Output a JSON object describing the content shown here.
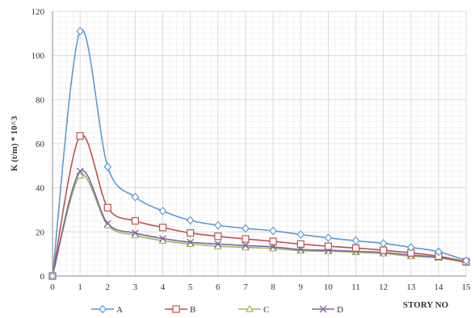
{
  "chart_data": {
    "type": "line",
    "title": "",
    "xlabel": "STORY NO",
    "ylabel": "K (t/m) * 10^3",
    "x": [
      0,
      1,
      2,
      3,
      4,
      5,
      6,
      7,
      8,
      9,
      10,
      11,
      12,
      13,
      14,
      15
    ],
    "xlim": [
      0,
      15
    ],
    "ylim": [
      0,
      120
    ],
    "yticks": [
      0,
      20,
      40,
      60,
      80,
      100,
      120
    ],
    "grid": true,
    "legend_position": "bottom",
    "series": [
      {
        "name": "A",
        "color": "#5b9bd5",
        "marker": "diamond",
        "values": [
          0,
          111,
          49.5,
          35.8,
          29.5,
          25.2,
          23.0,
          21.6,
          20.5,
          18.8,
          17.3,
          16.0,
          14.8,
          13.0,
          11.0,
          7.0
        ]
      },
      {
        "name": "B",
        "color": "#c0504d",
        "marker": "square",
        "values": [
          0,
          63.5,
          31.0,
          25.0,
          22.0,
          19.5,
          18.0,
          16.8,
          15.7,
          14.5,
          13.5,
          12.7,
          11.7,
          10.5,
          9.0,
          6.5
        ]
      },
      {
        "name": "C",
        "color": "#9bbb59",
        "marker": "triangle",
        "values": [
          0,
          45.5,
          23.0,
          18.5,
          16.0,
          14.5,
          13.5,
          13.0,
          12.5,
          11.5,
          11.2,
          10.8,
          10.2,
          9.0,
          8.2,
          6.0
        ]
      },
      {
        "name": "D",
        "color": "#8064a2",
        "marker": "x",
        "values": [
          0,
          47.5,
          23.8,
          19.5,
          17.0,
          15.3,
          14.5,
          13.8,
          13.2,
          12.0,
          11.7,
          11.2,
          10.7,
          9.5,
          8.5,
          6.5
        ]
      }
    ]
  }
}
